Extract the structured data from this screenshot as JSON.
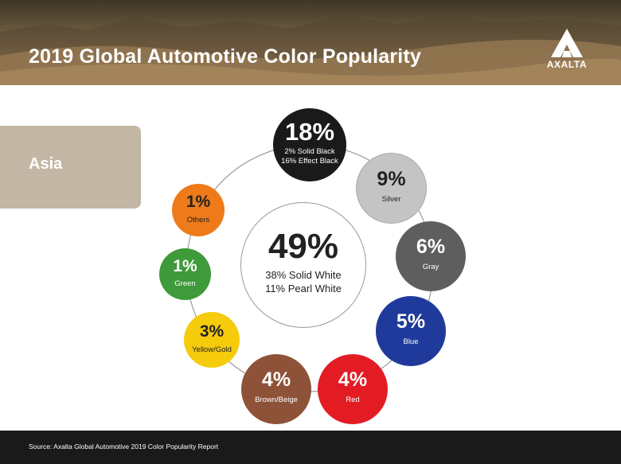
{
  "header": {
    "title": "2019 Global Automotive Color Popularity",
    "logo_text": "AXALTA"
  },
  "region": {
    "label": "Asia"
  },
  "center": {
    "percent": "49%",
    "line1": "38% Solid White",
    "line2": "11% Pearl White"
  },
  "bubbles": {
    "black": {
      "percent": "18%",
      "line1": "2% Solid Black",
      "line2": "16% Effect Black"
    },
    "silver": {
      "percent": "9%",
      "label": "Silver"
    },
    "gray": {
      "percent": "6%",
      "label": "Gray"
    },
    "blue": {
      "percent": "5%",
      "label": "Blue"
    },
    "red": {
      "percent": "4%",
      "label": "Red"
    },
    "brown": {
      "percent": "4%",
      "label": "Brown/Beige"
    },
    "yellow": {
      "percent": "3%",
      "label": "Yellow/Gold"
    },
    "green": {
      "percent": "1%",
      "label": "Green"
    },
    "others": {
      "percent": "1%",
      "label": "Others"
    }
  },
  "footer": {
    "source": "Source: Axalta Global Automotive 2019 Color Popularity Report"
  },
  "colors": {
    "white": "#ffffff",
    "black": "#1a1a1a",
    "silver": "#c4c4c4",
    "gray": "#5e5e5e",
    "blue": "#1f3a9a",
    "red": "#e31c24",
    "brown": "#8e5238",
    "yellow": "#f5cb0c",
    "green": "#3e9a3a",
    "orange": "#ee7a1a",
    "region_tab": "#c3b6a5"
  },
  "chart_data": {
    "type": "pie",
    "categories": [
      "White",
      "Black",
      "Silver",
      "Gray",
      "Blue",
      "Red",
      "Brown/Beige",
      "Yellow/Gold",
      "Green",
      "Others"
    ],
    "values": [
      49,
      18,
      9,
      6,
      5,
      4,
      4,
      3,
      1,
      1
    ],
    "breakdown": {
      "White": [
        {
          "label": "Solid White",
          "value": 38
        },
        {
          "label": "Pearl White",
          "value": 11
        }
      ],
      "Black": [
        {
          "label": "Solid Black",
          "value": 2
        },
        {
          "label": "Effect Black",
          "value": 16
        }
      ]
    },
    "title": "2019 Global Automotive Color Popularity",
    "subtitle": "Asia",
    "source": "Source: Axalta Global Automotive 2019 Color Popularity Report"
  }
}
